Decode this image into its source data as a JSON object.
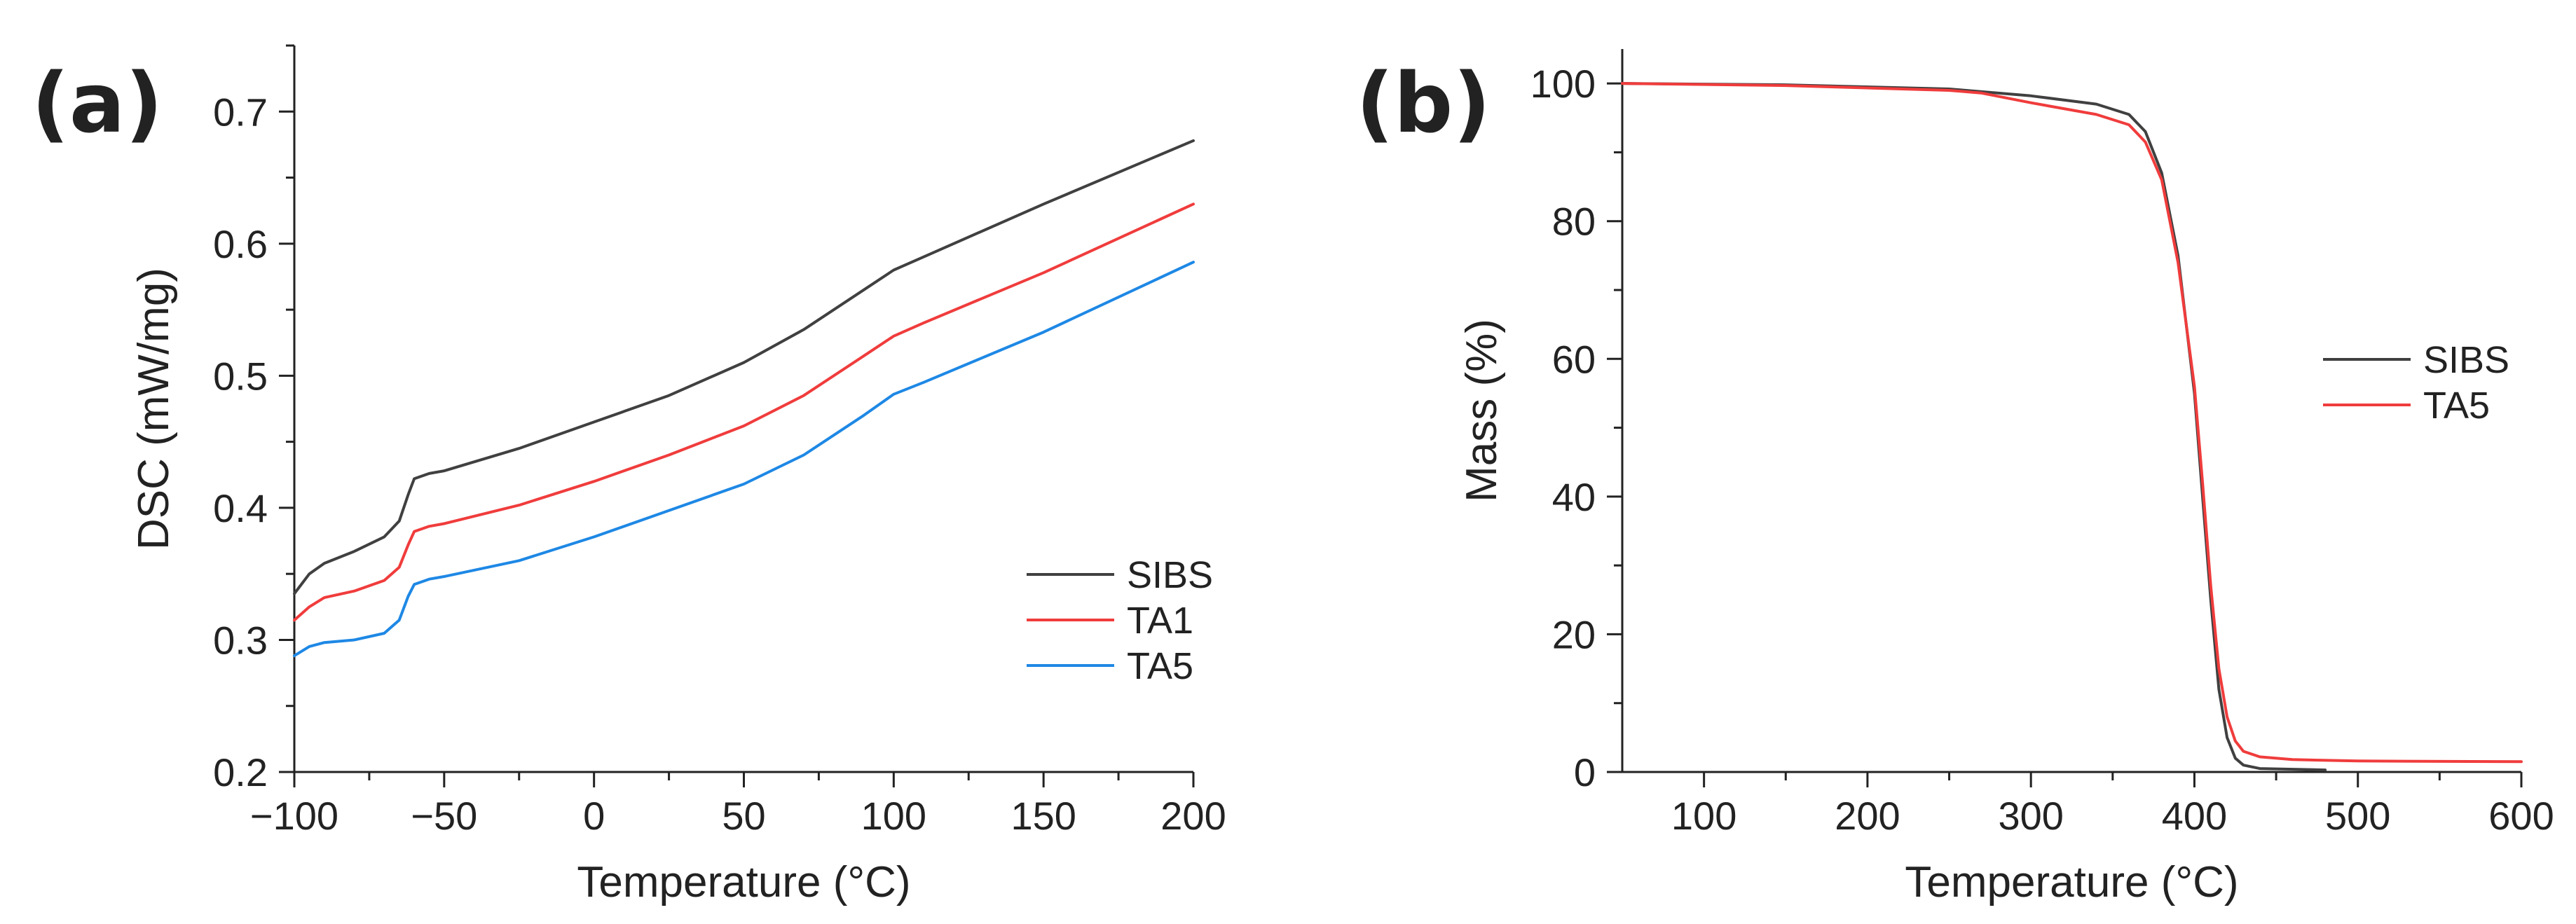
{
  "panels": {
    "a": {
      "letter": "(a)"
    },
    "b": {
      "letter": "(b)"
    }
  },
  "chart_data": [
    {
      "type": "line",
      "panel": "(a)",
      "xlabel": "Temperature (°C)",
      "ylabel": "DSC (mW/mg)",
      "xlim": [
        -100,
        200
      ],
      "ylim": [
        0.2,
        0.75
      ],
      "xticks": [
        -100,
        -50,
        0,
        50,
        100,
        150,
        200
      ],
      "xtick_labels": [
        "−100",
        "−50",
        "0",
        "50",
        "100",
        "150",
        "200"
      ],
      "yticks": [
        0.2,
        0.3,
        0.4,
        0.5,
        0.6,
        0.7
      ],
      "ytick_labels": [
        "0.2",
        "0.3",
        "0.4",
        "0.5",
        "0.6",
        "0.7"
      ],
      "legend_position": "lower-right",
      "grid": false,
      "series": [
        {
          "name": "SIBS",
          "color": "#404040",
          "x": [
            -100,
            -95,
            -90,
            -80,
            -70,
            -65,
            -62,
            -60,
            -55,
            -50,
            -25,
            0,
            25,
            50,
            70,
            90,
            100,
            110,
            150,
            200
          ],
          "y": [
            0.335,
            0.35,
            0.358,
            0.367,
            0.378,
            0.39,
            0.41,
            0.422,
            0.426,
            0.428,
            0.445,
            0.465,
            0.485,
            0.51,
            0.535,
            0.565,
            0.58,
            0.59,
            0.63,
            0.678
          ]
        },
        {
          "name": "TA1",
          "color": "#f03c3c",
          "x": [
            -100,
            -95,
            -90,
            -80,
            -70,
            -65,
            -62,
            -60,
            -55,
            -50,
            -25,
            0,
            25,
            50,
            70,
            90,
            100,
            110,
            150,
            200
          ],
          "y": [
            0.315,
            0.325,
            0.332,
            0.337,
            0.345,
            0.355,
            0.372,
            0.382,
            0.386,
            0.388,
            0.402,
            0.42,
            0.44,
            0.462,
            0.485,
            0.515,
            0.53,
            0.54,
            0.578,
            0.63
          ]
        },
        {
          "name": "TA5",
          "color": "#1e88e5",
          "x": [
            -100,
            -95,
            -90,
            -80,
            -70,
            -65,
            -62,
            -60,
            -55,
            -50,
            -25,
            0,
            25,
            50,
            70,
            90,
            100,
            110,
            150,
            200
          ],
          "y": [
            0.288,
            0.295,
            0.298,
            0.3,
            0.305,
            0.315,
            0.333,
            0.342,
            0.346,
            0.348,
            0.36,
            0.378,
            0.398,
            0.418,
            0.44,
            0.47,
            0.486,
            0.495,
            0.533,
            0.586
          ]
        }
      ]
    },
    {
      "type": "line",
      "panel": "(b)",
      "xlabel": "Temperature (°C)",
      "ylabel": "Mass (%)",
      "xlim": [
        50,
        600
      ],
      "ylim": [
        0,
        105
      ],
      "xticks": [
        100,
        200,
        300,
        400,
        500,
        600
      ],
      "xtick_labels": [
        "100",
        "200",
        "300",
        "400",
        "500",
        "600"
      ],
      "yticks": [
        0,
        20,
        40,
        60,
        80,
        100
      ],
      "ytick_labels": [
        "0",
        "20",
        "40",
        "60",
        "80",
        "100"
      ],
      "legend_position": "right",
      "grid": false,
      "series": [
        {
          "name": "SIBS",
          "color": "#404040",
          "x": [
            50,
            150,
            250,
            300,
            340,
            360,
            370,
            380,
            390,
            400,
            405,
            410,
            415,
            420,
            425,
            430,
            440,
            480
          ],
          "y": [
            100,
            99.8,
            99.2,
            98.2,
            97,
            95.5,
            93,
            87,
            75,
            55,
            40,
            25,
            12,
            5,
            2,
            1,
            0.5,
            0.3
          ]
        },
        {
          "name": "TA5",
          "color": "#f03c3c",
          "x": [
            50,
            150,
            250,
            270,
            300,
            340,
            360,
            370,
            380,
            390,
            400,
            405,
            410,
            415,
            420,
            425,
            430,
            440,
            460,
            500,
            600
          ],
          "y": [
            100,
            99.7,
            99,
            98.6,
            97.2,
            95.5,
            94,
            91.5,
            86,
            74,
            56,
            42,
            27,
            15,
            8,
            4.5,
            3,
            2.2,
            1.8,
            1.6,
            1.5
          ]
        }
      ]
    }
  ]
}
